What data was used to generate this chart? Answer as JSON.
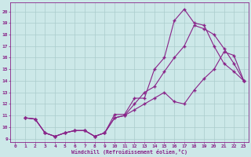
{
  "xlabel": "Windchill (Refroidissement éolien,°C)",
  "bg_color": "#cce8e8",
  "line_color": "#882288",
  "grid_color": "#aacccc",
  "xlim": [
    -0.5,
    23.5
  ],
  "ylim": [
    8.7,
    20.8
  ],
  "yticks": [
    9,
    10,
    11,
    12,
    13,
    14,
    15,
    16,
    17,
    18,
    19,
    20
  ],
  "xticks": [
    0,
    1,
    2,
    3,
    4,
    5,
    6,
    7,
    8,
    9,
    10,
    11,
    12,
    13,
    14,
    15,
    16,
    17,
    18,
    19,
    20,
    21,
    22,
    23
  ],
  "line1_x": [
    1,
    2,
    3,
    4,
    5,
    6,
    7,
    8,
    9,
    10,
    11,
    12,
    13,
    14,
    15,
    16,
    17,
    18,
    19,
    20,
    21,
    22,
    23
  ],
  "line1_y": [
    10.8,
    10.7,
    9.5,
    9.2,
    9.5,
    9.7,
    9.7,
    9.2,
    9.5,
    11.1,
    11.1,
    12.5,
    12.5,
    15.0,
    16.0,
    19.2,
    20.2,
    19.0,
    18.8,
    17.0,
    15.5,
    14.8,
    14.0
  ],
  "line2_x": [
    1,
    2,
    3,
    4,
    5,
    6,
    7,
    8,
    9,
    10,
    11,
    12,
    13,
    14,
    15,
    16,
    17,
    18,
    19,
    20,
    21,
    22,
    23
  ],
  "line2_y": [
    10.8,
    10.7,
    9.5,
    9.2,
    9.5,
    9.7,
    9.7,
    9.2,
    9.5,
    10.8,
    11.0,
    12.0,
    13.0,
    13.5,
    14.8,
    16.0,
    17.0,
    18.8,
    18.5,
    18.0,
    16.8,
    15.5,
    14.0
  ],
  "line3_x": [
    1,
    2,
    3,
    4,
    5,
    6,
    7,
    8,
    9,
    10,
    11,
    12,
    13,
    14,
    15,
    16,
    17,
    18,
    19,
    20,
    21,
    22,
    23
  ],
  "line3_y": [
    10.8,
    10.7,
    9.5,
    9.2,
    9.5,
    9.7,
    9.7,
    9.2,
    9.5,
    10.8,
    11.0,
    11.5,
    12.0,
    12.5,
    13.0,
    12.2,
    12.0,
    13.2,
    14.2,
    15.0,
    16.5,
    16.2,
    14.0
  ]
}
